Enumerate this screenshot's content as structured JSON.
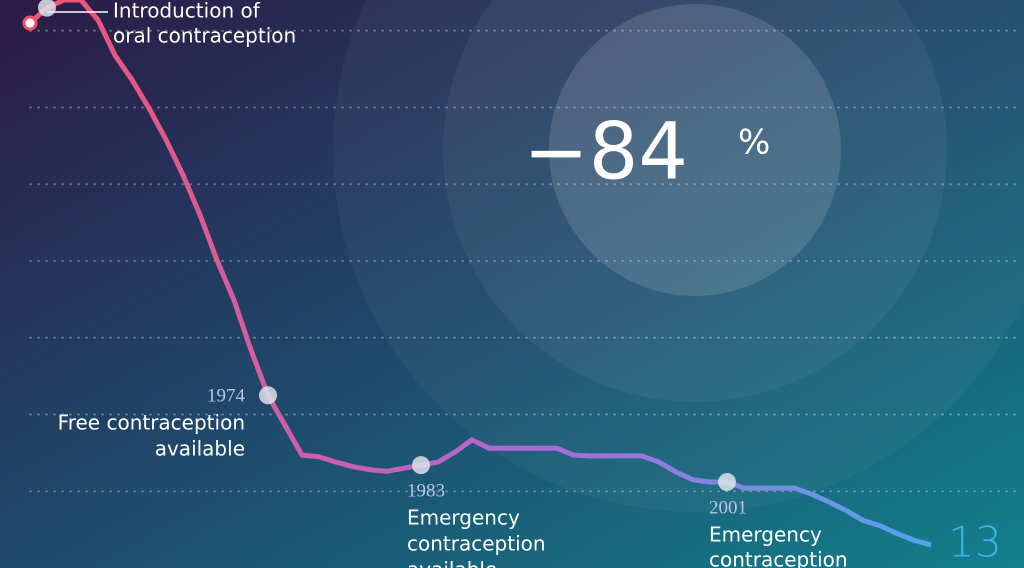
{
  "chart_data": {
    "type": "line",
    "x": [
      1960,
      1961,
      1962,
      1963,
      1964,
      1965,
      1966,
      1967,
      1968,
      1969,
      1970,
      1971,
      1972,
      1973,
      1974,
      1975,
      1976,
      1977,
      1978,
      1979,
      1980,
      1981,
      1982,
      1983,
      1984,
      1985,
      1986,
      1987,
      1988,
      1989,
      1990,
      1991,
      1992,
      1993,
      1994,
      1995,
      1996,
      1997,
      1998,
      1999,
      2000,
      2001,
      2002,
      2003,
      2004,
      2005,
      2006,
      2007,
      2008,
      2009,
      2010,
      2011,
      2012,
      2013
    ],
    "values": [
      81,
      83,
      84,
      84,
      81.4,
      76.8,
      73.6,
      69.9,
      65.8,
      61.2,
      56,
      50.1,
      44.9,
      38.4,
      32.5,
      28.6,
      24.7,
      24.5,
      23.8,
      23.2,
      22.8,
      22.6,
      23,
      23.4,
      23.8,
      25.1,
      26.7,
      25.6,
      25.6,
      25.6,
      25.6,
      25.6,
      24.7,
      24.6,
      24.6,
      24.6,
      24.6,
      23.8,
      22.5,
      21.5,
      21.2,
      21.2,
      20.4,
      20.4,
      20.4,
      20.4,
      19.6,
      18.6,
      17.5,
      16.2,
      15.5,
      14.5,
      13.6,
      13
    ],
    "color_start": "#f25470",
    "color_mid": "#b067d8",
    "color_end": "#3fb2ee",
    "xlim": [
      1960,
      2018
    ],
    "ylim": [
      10,
      84
    ],
    "yticks": [
      20,
      30,
      40,
      50,
      60,
      70,
      80
    ],
    "grid": true,
    "change": {
      "value": "−84",
      "unit": "%"
    },
    "events": [
      {
        "x": 1961,
        "lines": [
          "Introduction of",
          "oral contraception"
        ]
      },
      {
        "x": 1974,
        "lines": [
          "Free contraception",
          "available"
        ]
      },
      {
        "x": 1983,
        "lines": [
          "Emergency",
          "contraception",
          "available"
        ]
      },
      {
        "x": 2001,
        "lines": [
          "Emergency",
          "contraception"
        ]
      }
    ]
  }
}
